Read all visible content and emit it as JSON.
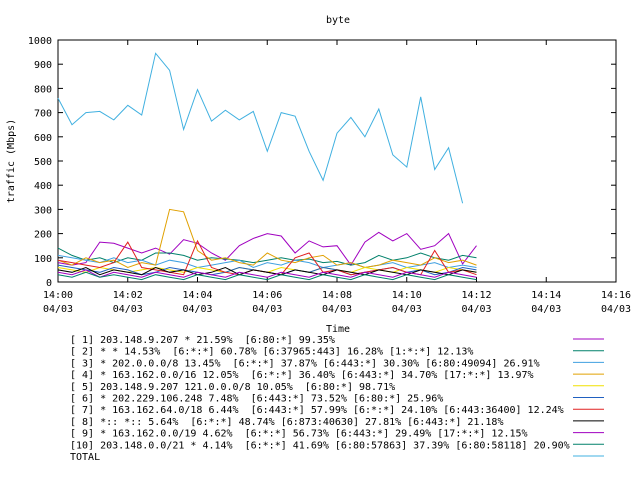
{
  "chart_data": {
    "type": "line",
    "title": "byte",
    "xlabel": "Time",
    "ylabel": "traffic (Mbps)",
    "ylim": [
      0,
      1000
    ],
    "yticks": [
      "0",
      "100",
      "200",
      "300",
      "400",
      "500",
      "600",
      "700",
      "800",
      "900",
      "1000"
    ],
    "xlim": [
      0,
      40
    ],
    "xticks": [
      {
        "x": 0,
        "time": "14:00",
        "date": "04/03"
      },
      {
        "x": 5,
        "time": "14:02",
        "date": "04/03"
      },
      {
        "x": 10,
        "time": "14:04",
        "date": "04/03"
      },
      {
        "x": 15,
        "time": "14:06",
        "date": "04/03"
      },
      {
        "x": 20,
        "time": "14:08",
        "date": "04/03"
      },
      {
        "x": 25,
        "time": "14:10",
        "date": "04/03"
      },
      {
        "x": 30,
        "time": "14:12",
        "date": "04/03"
      },
      {
        "x": 35,
        "time": "14:14",
        "date": "04/03"
      },
      {
        "x": 40,
        "time": "14:16",
        "date": "04/03"
      }
    ],
    "grid": false,
    "legend_placement": "bottom",
    "series": [
      {
        "name": "[ 1] 203.148.9.207 * 21.59%  [6:80:*] 99.35%",
        "color": "#a000c0",
        "values": [
          80,
          70,
          80,
          165,
          160,
          140,
          120,
          140,
          115,
          175,
          160,
          120,
          90,
          150,
          180,
          200,
          190,
          120,
          170,
          145,
          150,
          70,
          165,
          205,
          170,
          200,
          135,
          150,
          200,
          75,
          150
        ]
      },
      {
        "name": "[ 2] * * 14.53%  [6:*:*] 60.78% [6:37965:443] 16.28% [1:*:*] 12.13%",
        "color": "#00806a",
        "values": [
          140,
          110,
          90,
          100,
          80,
          100,
          90,
          120,
          120,
          110,
          90,
          100,
          95,
          90,
          80,
          90,
          100,
          90,
          95,
          80,
          85,
          70,
          80,
          110,
          90,
          100,
          120,
          100,
          90,
          110,
          100
        ]
      },
      {
        "name": "[ 3] * 202.0.0.0/8 13.45%  [6:*:*] 37.87% [6:443:*] 30.30% [6:80:49094] 26.91%",
        "color": "#40a0e0",
        "values": [
          110,
          100,
          90,
          80,
          100,
          80,
          90,
          70,
          90,
          80,
          60,
          70,
          80,
          90,
          60,
          80,
          70,
          90,
          80,
          60,
          70,
          80,
          60,
          70,
          80,
          60,
          70,
          80,
          60,
          70,
          60
        ]
      },
      {
        "name": "[ 4] * 163.162.0.0/16 12.05%  [6:*:*] 36.40% [6:443:*] 34.70% [17:*:*] 13.97%",
        "color": "#e0a000",
        "values": [
          90,
          70,
          100,
          80,
          90,
          60,
          80,
          70,
          300,
          290,
          130,
          90,
          100,
          80,
          70,
          120,
          90,
          80,
          100,
          110,
          70,
          80,
          60,
          70,
          90,
          80,
          70,
          100,
          80,
          90,
          70
        ]
      },
      {
        "name": "[ 5] 203.148.9.207 121.0.0.0/8 10.05%  [6:80:*] 98.71%",
        "color": "#f0e000",
        "values": [
          60,
          50,
          40,
          60,
          50,
          40,
          50,
          60,
          50,
          40,
          60,
          50,
          40,
          60,
          50,
          40,
          60,
          50,
          40,
          60,
          50,
          40,
          60,
          50,
          40,
          60,
          50,
          40,
          60,
          50,
          40
        ]
      },
      {
        "name": "[ 6] * 202.229.106.248 7.48%  [6:443:*] 73.52% [6:80:*] 25.96%",
        "color": "#2060c0",
        "values": [
          70,
          60,
          50,
          40,
          60,
          50,
          30,
          40,
          60,
          50,
          40,
          30,
          40,
          60,
          50,
          40,
          30,
          50,
          40,
          60,
          50,
          30,
          40,
          50,
          60,
          40,
          50,
          30,
          40,
          60,
          50
        ]
      },
      {
        "name": "[ 7] * 163.162.64.0/18 6.44%  [6:443:*] 57.99% [6:*:*] 24.10% [6:443:36400] 12.24%",
        "color": "#e02020",
        "values": [
          90,
          80,
          70,
          60,
          80,
          165,
          60,
          50,
          40,
          30,
          170,
          60,
          40,
          30,
          50,
          40,
          30,
          100,
          120,
          40,
          50,
          30,
          40,
          50,
          60,
          40,
          30,
          130,
          40,
          50,
          30
        ]
      },
      {
        "name": "[ 8] *:: *:: 5.64%  [6:*:*] 48.74% [6:873:40630] 27.81% [6:443:*] 21.18%",
        "color": "#000000",
        "values": [
          50,
          40,
          60,
          30,
          50,
          40,
          30,
          60,
          40,
          50,
          30,
          40,
          60,
          30,
          50,
          40,
          30,
          50,
          40,
          30,
          50,
          40,
          30,
          50,
          40,
          30,
          50,
          40,
          30,
          50,
          40
        ]
      },
      {
        "name": "[ 9] * 163.162.0.0/19 4.62%  [6:*:*] 56.73% [6:443:*] 29.49% [17:*:*] 12.15%",
        "color": "#a000c0",
        "values": [
          40,
          30,
          50,
          20,
          40,
          30,
          20,
          40,
          30,
          20,
          40,
          30,
          20,
          40,
          30,
          20,
          40,
          30,
          20,
          40,
          30,
          20,
          40,
          30,
          20,
          40,
          30,
          20,
          40,
          30,
          20
        ]
      },
      {
        "name": "[10] 203.148.0.0/21 * 4.14%  [6:*:*] 41.69% [6:80:57863] 37.39% [6:80:58118] 20.90%",
        "color": "#00806a",
        "values": [
          30,
          20,
          40,
          20,
          30,
          20,
          10,
          30,
          20,
          10,
          30,
          20,
          10,
          30,
          20,
          10,
          30,
          20,
          10,
          30,
          20,
          10,
          30,
          20,
          10,
          30,
          20,
          10,
          30,
          20,
          10
        ]
      },
      {
        "name": "TOTAL",
        "color": "#40b0e0",
        "values": [
          760,
          650,
          700,
          705,
          670,
          730,
          690,
          945,
          875,
          630,
          795,
          665,
          710,
          670,
          705,
          540,
          700,
          685,
          540,
          420,
          615,
          680,
          600,
          715,
          525,
          475,
          765,
          465,
          555,
          325,
          null
        ]
      }
    ]
  }
}
